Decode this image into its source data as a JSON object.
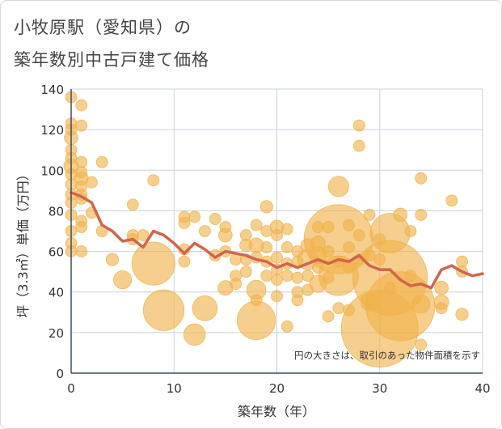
{
  "chart_data": {
    "type": "scatter",
    "title_line1": "小牧原駅（愛知県）の",
    "title_line2": "築年数別中古戸建て価格",
    "xlabel": "築年数（年）",
    "ylabel": "坪（3.3㎡）単価（万円）",
    "xlim": [
      0,
      40
    ],
    "ylim": [
      0,
      140
    ],
    "xticks": [
      0,
      10,
      20,
      30,
      40
    ],
    "yticks": [
      0,
      20,
      40,
      60,
      80,
      100,
      120,
      140
    ],
    "annotation": "円の大きさは、取引のあった物件面積を示す",
    "colors": {
      "bubble": "#f0b24a",
      "line": "#d4644c",
      "grid": "#c9d1dc",
      "axis": "#3b4d66"
    },
    "bubbles": [
      {
        "x": 0,
        "y": 136,
        "s": 1
      },
      {
        "x": 0,
        "y": 123,
        "s": 1
      },
      {
        "x": 0,
        "y": 120,
        "s": 1
      },
      {
        "x": 0,
        "y": 116,
        "s": 1.2
      },
      {
        "x": 0,
        "y": 110,
        "s": 1
      },
      {
        "x": 0,
        "y": 106,
        "s": 1
      },
      {
        "x": 0,
        "y": 102,
        "s": 1.3
      },
      {
        "x": 0,
        "y": 98,
        "s": 1
      },
      {
        "x": 0,
        "y": 93,
        "s": 1
      },
      {
        "x": 0,
        "y": 88,
        "s": 1
      },
      {
        "x": 0,
        "y": 84,
        "s": 1
      },
      {
        "x": 0,
        "y": 78,
        "s": 1
      },
      {
        "x": 0,
        "y": 70,
        "s": 1
      },
      {
        "x": 0,
        "y": 64,
        "s": 1
      },
      {
        "x": 0,
        "y": 60,
        "s": 1
      },
      {
        "x": 1,
        "y": 132,
        "s": 1
      },
      {
        "x": 1,
        "y": 122,
        "s": 1
      },
      {
        "x": 1,
        "y": 104,
        "s": 1
      },
      {
        "x": 1,
        "y": 99,
        "s": 1
      },
      {
        "x": 1,
        "y": 96,
        "s": 1.2
      },
      {
        "x": 1,
        "y": 92,
        "s": 1
      },
      {
        "x": 1,
        "y": 88,
        "s": 1
      },
      {
        "x": 1,
        "y": 86,
        "s": 1
      },
      {
        "x": 1,
        "y": 75,
        "s": 1
      },
      {
        "x": 1,
        "y": 72,
        "s": 1
      },
      {
        "x": 1,
        "y": 60,
        "s": 1
      },
      {
        "x": 2,
        "y": 94,
        "s": 1
      },
      {
        "x": 2,
        "y": 79,
        "s": 1
      },
      {
        "x": 3,
        "y": 104,
        "s": 1
      },
      {
        "x": 3,
        "y": 70,
        "s": 1
      },
      {
        "x": 4,
        "y": 56,
        "s": 1.1
      },
      {
        "x": 5,
        "y": 46,
        "s": 1.6
      },
      {
        "x": 6,
        "y": 83,
        "s": 1
      },
      {
        "x": 6,
        "y": 68,
        "s": 1
      },
      {
        "x": 6,
        "y": 66,
        "s": 1
      },
      {
        "x": 7,
        "y": 68,
        "s": 1
      },
      {
        "x": 8,
        "y": 95,
        "s": 1
      },
      {
        "x": 8,
        "y": 54,
        "s": 3.8
      },
      {
        "x": 9,
        "y": 31,
        "s": 3.6
      },
      {
        "x": 11,
        "y": 77,
        "s": 1
      },
      {
        "x": 11,
        "y": 74,
        "s": 1
      },
      {
        "x": 11,
        "y": 61,
        "s": 1
      },
      {
        "x": 11,
        "y": 55,
        "s": 1
      },
      {
        "x": 12,
        "y": 77,
        "s": 1
      },
      {
        "x": 12,
        "y": 19,
        "s": 1.9
      },
      {
        "x": 13,
        "y": 70,
        "s": 1
      },
      {
        "x": 13,
        "y": 32,
        "s": 2.2
      },
      {
        "x": 14,
        "y": 76,
        "s": 1
      },
      {
        "x": 14,
        "y": 58,
        "s": 1
      },
      {
        "x": 15,
        "y": 72,
        "s": 1
      },
      {
        "x": 15,
        "y": 68,
        "s": 1.2
      },
      {
        "x": 15,
        "y": 60,
        "s": 1
      },
      {
        "x": 15,
        "y": 42,
        "s": 1.3
      },
      {
        "x": 16,
        "y": 56,
        "s": 1
      },
      {
        "x": 16,
        "y": 48,
        "s": 1
      },
      {
        "x": 16,
        "y": 44,
        "s": 1
      },
      {
        "x": 17,
        "y": 68,
        "s": 1
      },
      {
        "x": 17,
        "y": 63,
        "s": 1.1
      },
      {
        "x": 17,
        "y": 56,
        "s": 1
      },
      {
        "x": 17,
        "y": 50,
        "s": 1
      },
      {
        "x": 18,
        "y": 73,
        "s": 1
      },
      {
        "x": 18,
        "y": 63,
        "s": 1.3
      },
      {
        "x": 18,
        "y": 57,
        "s": 1
      },
      {
        "x": 18,
        "y": 41,
        "s": 1.7
      },
      {
        "x": 18,
        "y": 36,
        "s": 1
      },
      {
        "x": 18,
        "y": 26,
        "s": 3.4
      },
      {
        "x": 19,
        "y": 82,
        "s": 1.1
      },
      {
        "x": 19,
        "y": 70,
        "s": 1
      },
      {
        "x": 19,
        "y": 62,
        "s": 1
      },
      {
        "x": 19,
        "y": 55,
        "s": 1
      },
      {
        "x": 19,
        "y": 48,
        "s": 1
      },
      {
        "x": 20,
        "y": 72,
        "s": 1.2
      },
      {
        "x": 20,
        "y": 68,
        "s": 1
      },
      {
        "x": 20,
        "y": 57,
        "s": 1
      },
      {
        "x": 20,
        "y": 51,
        "s": 1
      },
      {
        "x": 20,
        "y": 46,
        "s": 1
      },
      {
        "x": 20,
        "y": 38,
        "s": 1
      },
      {
        "x": 21,
        "y": 71,
        "s": 1
      },
      {
        "x": 21,
        "y": 62,
        "s": 1
      },
      {
        "x": 21,
        "y": 54,
        "s": 1
      },
      {
        "x": 21,
        "y": 48,
        "s": 1
      },
      {
        "x": 21,
        "y": 23,
        "s": 1
      },
      {
        "x": 22,
        "y": 60,
        "s": 1
      },
      {
        "x": 22,
        "y": 55,
        "s": 1
      },
      {
        "x": 22,
        "y": 47,
        "s": 1
      },
      {
        "x": 22,
        "y": 40,
        "s": 1
      },
      {
        "x": 22,
        "y": 36,
        "s": 1
      },
      {
        "x": 23,
        "y": 63,
        "s": 1.2
      },
      {
        "x": 23,
        "y": 56,
        "s": 1.8
      },
      {
        "x": 23,
        "y": 48,
        "s": 1
      },
      {
        "x": 23,
        "y": 41,
        "s": 1
      },
      {
        "x": 24,
        "y": 72,
        "s": 1
      },
      {
        "x": 24,
        "y": 64,
        "s": 1.3
      },
      {
        "x": 24,
        "y": 58,
        "s": 1.5
      },
      {
        "x": 24,
        "y": 52,
        "s": 1
      },
      {
        "x": 24,
        "y": 44,
        "s": 1.5
      },
      {
        "x": 25,
        "y": 72,
        "s": 1
      },
      {
        "x": 25,
        "y": 60,
        "s": 1
      },
      {
        "x": 25,
        "y": 47,
        "s": 1
      },
      {
        "x": 25,
        "y": 28,
        "s": 1
      },
      {
        "x": 26,
        "y": 92,
        "s": 1.8
      },
      {
        "x": 26,
        "y": 66,
        "s": 6.1
      },
      {
        "x": 26,
        "y": 55,
        "s": 1
      },
      {
        "x": 26,
        "y": 48,
        "s": 3.5
      },
      {
        "x": 26,
        "y": 32,
        "s": 1
      },
      {
        "x": 27,
        "y": 73,
        "s": 1
      },
      {
        "x": 27,
        "y": 62,
        "s": 1
      },
      {
        "x": 27,
        "y": 52,
        "s": 1
      },
      {
        "x": 27,
        "y": 31,
        "s": 1
      },
      {
        "x": 28,
        "y": 122,
        "s": 1
      },
      {
        "x": 28,
        "y": 112,
        "s": 1
      },
      {
        "x": 28,
        "y": 68,
        "s": 1
      },
      {
        "x": 28,
        "y": 56,
        "s": 1
      },
      {
        "x": 29,
        "y": 78,
        "s": 1
      },
      {
        "x": 29,
        "y": 58,
        "s": 1
      },
      {
        "x": 29,
        "y": 35,
        "s": 1.5
      },
      {
        "x": 30,
        "y": 66,
        "s": 1
      },
      {
        "x": 30,
        "y": 56,
        "s": 1
      },
      {
        "x": 30,
        "y": 22,
        "s": 6.8
      },
      {
        "x": 31,
        "y": 69,
        "s": 3.5
      },
      {
        "x": 31,
        "y": 47,
        "s": 6.6
      },
      {
        "x": 31,
        "y": 42,
        "s": 1
      },
      {
        "x": 32,
        "y": 78,
        "s": 1.2
      },
      {
        "x": 32,
        "y": 33,
        "s": 6.1
      },
      {
        "x": 33,
        "y": 70,
        "s": 1
      },
      {
        "x": 33,
        "y": 48,
        "s": 1
      },
      {
        "x": 34,
        "y": 96,
        "s": 1
      },
      {
        "x": 34,
        "y": 78,
        "s": 1
      },
      {
        "x": 34,
        "y": 34,
        "s": 1.6
      },
      {
        "x": 34,
        "y": 14,
        "s": 1
      },
      {
        "x": 36,
        "y": 42,
        "s": 1.2
      },
      {
        "x": 36,
        "y": 35,
        "s": 1.3
      },
      {
        "x": 36,
        "y": 32,
        "s": 1
      },
      {
        "x": 37,
        "y": 85,
        "s": 1
      },
      {
        "x": 38,
        "y": 55,
        "s": 1
      },
      {
        "x": 38,
        "y": 50,
        "s": 1
      },
      {
        "x": 38,
        "y": 29,
        "s": 1.1
      }
    ],
    "line": {
      "x": [
        0,
        1,
        2,
        3,
        4,
        5,
        6,
        7,
        8,
        9,
        10,
        11,
        12,
        13,
        14,
        15,
        16,
        17,
        18,
        19,
        20,
        21,
        22,
        23,
        24,
        25,
        26,
        27,
        28,
        29,
        30,
        31,
        32,
        33,
        34,
        35,
        36,
        37,
        38,
        39,
        40
      ],
      "y": [
        89,
        87,
        84,
        73,
        70,
        65,
        66,
        62,
        70,
        68,
        64,
        59,
        64,
        61,
        57,
        60,
        59,
        58,
        56,
        55,
        52,
        54,
        52,
        54,
        56,
        54,
        56,
        55,
        58,
        53,
        51,
        51,
        46,
        43,
        44,
        42,
        51,
        53,
        50,
        48,
        49
      ]
    }
  }
}
